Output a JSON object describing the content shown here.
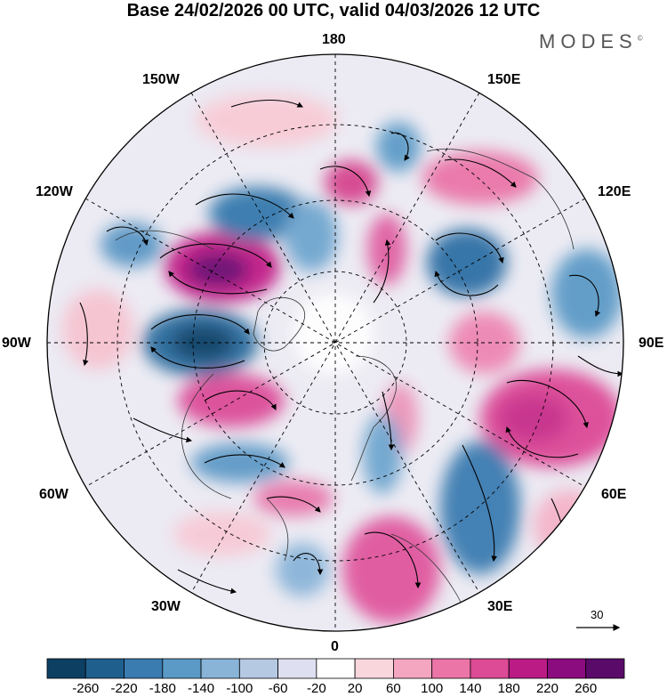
{
  "title": "Base 24/02/2026 00 UTC, valid 04/03/2026 12 UTC",
  "brand": "MODES",
  "brand_mark": "©",
  "longitude_labels": {
    "top": "180",
    "bottom": "0",
    "left": "90W",
    "right": "90E",
    "upper_left_1": "150W",
    "upper_left_2": "120W",
    "upper_right_1": "150E",
    "upper_right_2": "120E",
    "lower_left_1": "60W",
    "lower_left_2": "30W",
    "lower_right_1": "60E",
    "lower_right_2": "30E"
  },
  "reference_vector": "30",
  "colorbar": {
    "labels": [
      "-260",
      "-220",
      "-180",
      "-140",
      "-100",
      "-60",
      "-20",
      "20",
      "60",
      "100",
      "140",
      "180",
      "220",
      "260"
    ],
    "colors": [
      "#0d3f63",
      "#1f5f8e",
      "#3a7bb0",
      "#5b9ac6",
      "#89b4d8",
      "#b5c9e3",
      "#dedff0",
      "#ffffff",
      "#f9d6dc",
      "#f4a6c0",
      "#ec75a8",
      "#dd4a96",
      "#bb1b85",
      "#8b0c7e",
      "#5a0b6a"
    ]
  }
}
